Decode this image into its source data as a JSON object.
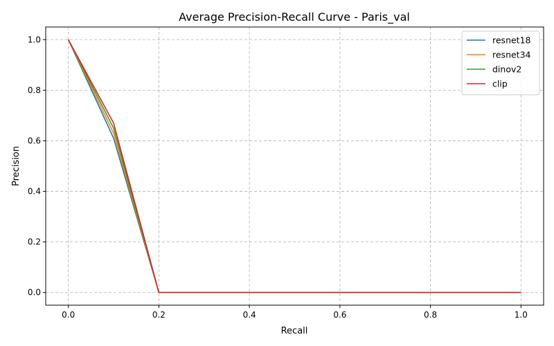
{
  "chart_data": {
    "type": "line",
    "title": "Average Precision-Recall Curve - Paris_val",
    "xlabel": "Recall",
    "ylabel": "Precision",
    "xlim": [
      -0.05,
      1.05
    ],
    "ylim": [
      -0.05,
      1.05
    ],
    "xticks": [
      "0.0",
      "0.2",
      "0.4",
      "0.6",
      "0.8",
      "1.0"
    ],
    "yticks": [
      "0.0",
      "0.2",
      "0.4",
      "0.6",
      "0.8",
      "1.0"
    ],
    "grid": true,
    "legend_position": "top-right",
    "x": [
      0.0,
      0.1,
      0.2,
      0.3,
      0.4,
      0.5,
      0.6,
      0.7,
      0.8,
      0.9,
      1.0
    ],
    "series": [
      {
        "name": "resnet18",
        "color": "#1f77b4",
        "values": [
          1.0,
          0.61,
          0.0,
          0.0,
          0.0,
          0.0,
          0.0,
          0.0,
          0.0,
          0.0,
          0.0
        ]
      },
      {
        "name": "resnet34",
        "color": "#ff7f0e",
        "values": [
          1.0,
          0.63,
          0.0,
          0.0,
          0.0,
          0.0,
          0.0,
          0.0,
          0.0,
          0.0,
          0.0
        ]
      },
      {
        "name": "dinov2",
        "color": "#2ca02c",
        "values": [
          1.0,
          0.65,
          0.0,
          0.0,
          0.0,
          0.0,
          0.0,
          0.0,
          0.0,
          0.0,
          0.0
        ]
      },
      {
        "name": "clip",
        "color": "#d62728",
        "values": [
          1.0,
          0.67,
          0.0,
          0.0,
          0.0,
          0.0,
          0.0,
          0.0,
          0.0,
          0.0,
          0.0
        ]
      }
    ]
  }
}
